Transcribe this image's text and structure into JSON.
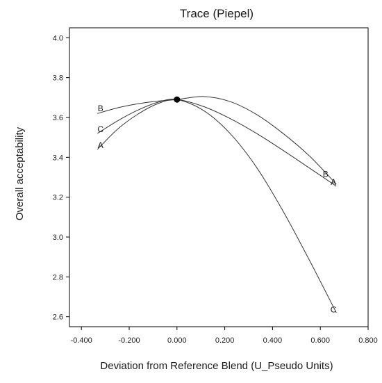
{
  "chart_data": {
    "type": "line",
    "title": "Trace (Piepel)",
    "xlabel": "Deviation from Reference Blend (U_Pseudo Units)",
    "ylabel": "Overall acceptability",
    "xlim": [
      -0.45,
      0.8
    ],
    "ylim": [
      2.55,
      4.05
    ],
    "xticks": [
      -0.4,
      -0.2,
      0.0,
      0.2,
      0.4,
      0.6,
      0.8
    ],
    "xtick_labels": [
      "-0.400",
      "-0.200",
      "0.000",
      "0.200",
      "0.400",
      "0.600",
      "0.800"
    ],
    "yticks": [
      2.6,
      2.8,
      3.0,
      3.2,
      3.4,
      3.6,
      3.8,
      4.0
    ],
    "ytick_labels": [
      "2.6",
      "2.8",
      "3.0",
      "3.2",
      "3.4",
      "3.6",
      "3.8",
      "4.0"
    ],
    "grid": false,
    "reference_point": {
      "x": 0.0,
      "y": 3.69
    },
    "series": [
      {
        "name": "A",
        "x": [
          -0.333,
          -0.25,
          -0.167,
          -0.083,
          0.0,
          0.111,
          0.222,
          0.333,
          0.444,
          0.556,
          0.667
        ],
        "y": [
          3.44,
          3.54,
          3.614,
          3.668,
          3.69,
          3.655,
          3.595,
          3.52,
          3.435,
          3.345,
          3.255
        ]
      },
      {
        "name": "B",
        "x": [
          -0.333,
          -0.25,
          -0.167,
          -0.083,
          0.0,
          0.111,
          0.222,
          0.333,
          0.444,
          0.556,
          0.667
        ],
        "y": [
          3.62,
          3.648,
          3.668,
          3.682,
          3.69,
          3.705,
          3.68,
          3.615,
          3.52,
          3.405,
          3.265
        ]
      },
      {
        "name": "C",
        "x": [
          -0.333,
          -0.25,
          -0.167,
          -0.083,
          0.0,
          0.111,
          0.222,
          0.333,
          0.444,
          0.556,
          0.667
        ],
        "y": [
          3.52,
          3.582,
          3.635,
          3.675,
          3.69,
          3.635,
          3.52,
          3.35,
          3.13,
          2.88,
          2.62
        ]
      }
    ],
    "curve_labels": [
      {
        "text": "B",
        "x": -0.32,
        "y": 3.645
      },
      {
        "text": "C",
        "x": -0.32,
        "y": 3.54
      },
      {
        "text": "A",
        "x": -0.32,
        "y": 3.46
      },
      {
        "text": "B",
        "x": 0.622,
        "y": 3.315
      },
      {
        "text": "A",
        "x": 0.655,
        "y": 3.275
      },
      {
        "text": "C",
        "x": 0.655,
        "y": 2.635
      }
    ],
    "colors": {
      "line": "#333333",
      "axis": "#000000",
      "point": "#000000"
    }
  }
}
